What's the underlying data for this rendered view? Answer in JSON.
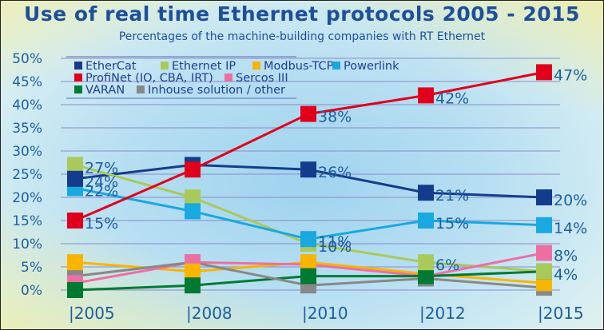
{
  "chart_data": {
    "type": "line",
    "title": "Use of real time Ethernet protocols 2005 - 2015",
    "subtitle": "Percentages of the machine-building  companies with  RT Ethernet",
    "xlabel": "",
    "ylabel": "",
    "x": [
      "|2005",
      "|2008",
      "|2010",
      "|2012",
      "|2015"
    ],
    "ylim": [
      0,
      50
    ],
    "yticks": [
      "0%",
      "5%",
      "10%",
      "15%",
      "20%",
      "25%",
      "30%",
      "35%",
      "40%",
      "45%",
      "50%"
    ],
    "grid": true,
    "legend_position": "top-left",
    "series": [
      {
        "name": "EtherCat",
        "color": "#143c8c",
        "values": [
          24,
          27,
          26,
          21,
          20
        ],
        "labels": [
          "24%",
          "",
          "26%",
          "21%",
          "20%"
        ]
      },
      {
        "name": "Ethernet IP",
        "color": "#a9c95a",
        "values": [
          27,
          20,
          10,
          6,
          4
        ],
        "labels": [
          "27%",
          "",
          "10%",
          "6%",
          "4%"
        ]
      },
      {
        "name": "Modbus-TCP",
        "color": "#f7b500",
        "values": [
          6,
          4,
          6,
          3.5,
          1.5
        ],
        "labels": [
          "",
          "",
          "",
          "",
          ""
        ]
      },
      {
        "name": "Powerlink",
        "color": "#19a8e0",
        "values": [
          22,
          17,
          11,
          15,
          14
        ],
        "labels": [
          "22%",
          "",
          "11%",
          "15%",
          "14%"
        ]
      },
      {
        "name": "ProfiNet (IO, CBA, IRT)",
        "color": "#e0001b",
        "values": [
          15,
          26,
          38,
          42,
          47
        ],
        "labels": [
          "15%",
          "",
          "38%",
          "42%",
          "47%"
        ]
      },
      {
        "name": "Sercos III",
        "color": "#ec6fa4",
        "values": [
          1.5,
          6,
          5.5,
          3,
          8
        ],
        "labels": [
          "",
          "",
          "",
          "",
          "8%"
        ]
      },
      {
        "name": "VARAN",
        "color": "#007a33",
        "values": [
          0,
          1,
          3,
          3,
          4
        ],
        "labels": [
          "",
          "",
          "",
          "",
          ""
        ]
      },
      {
        "name": "Inhouse solution / other",
        "color": "#888888",
        "values": [
          3,
          6,
          1,
          2.5,
          0.5
        ],
        "labels": [
          "",
          "",
          "",
          "",
          ""
        ]
      }
    ]
  }
}
